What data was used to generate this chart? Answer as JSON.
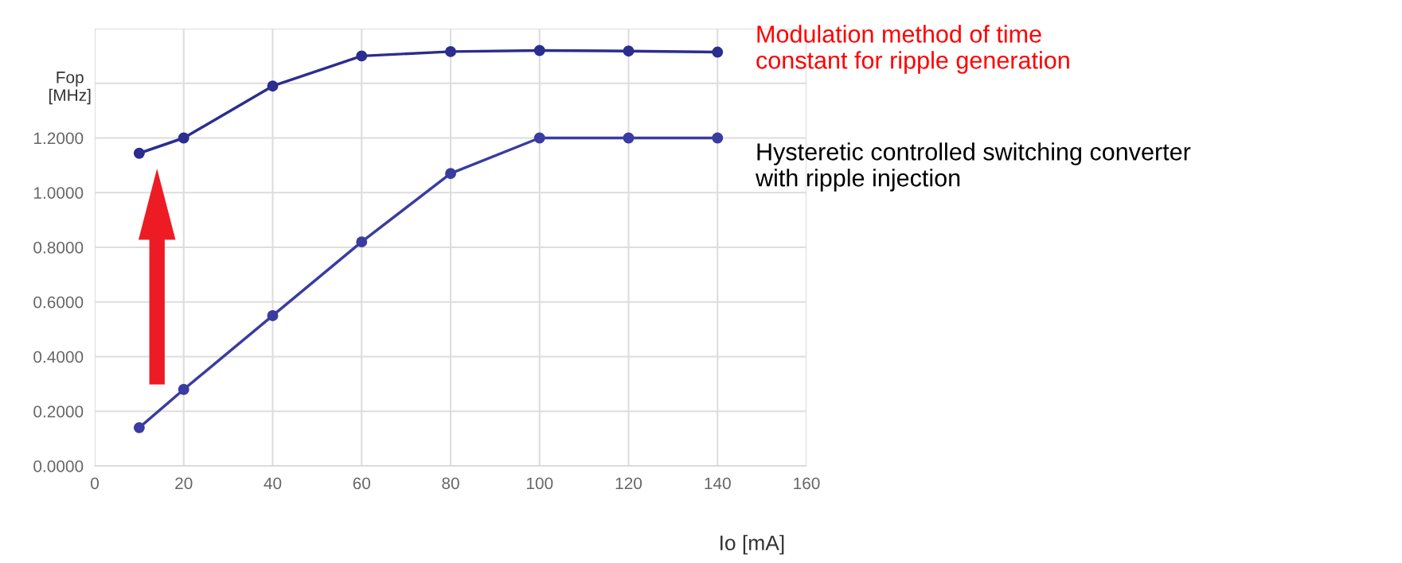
{
  "chart_data": {
    "type": "line",
    "xlabel": "Io [mA]",
    "ylabel": "Fop\n[MHz]",
    "x": [
      10,
      20,
      40,
      60,
      80,
      100,
      120,
      140
    ],
    "series": [
      {
        "color": "#2b2d8f",
        "values": [
          1.144,
          1.2,
          1.39,
          1.5,
          1.516,
          1.52,
          1.518,
          1.514
        ]
      },
      {
        "color": "#3b3ca0",
        "values": [
          0.14,
          0.28,
          0.55,
          0.82,
          1.07,
          1.2,
          1.2,
          1.2
        ]
      }
    ],
    "xlim": [
      0,
      160
    ],
    "xticks": [
      0,
      20,
      40,
      60,
      80,
      100,
      120,
      140,
      160
    ],
    "ylim": [
      0,
      1.6
    ],
    "yticks": [
      {
        "value": 0,
        "label": "0.0000"
      },
      {
        "value": 0.2,
        "label": "0.2000"
      },
      {
        "value": 0.4,
        "label": "0.4000"
      },
      {
        "value": 0.6,
        "label": "0.6000"
      },
      {
        "value": 0.8,
        "label": "0.8000"
      },
      {
        "value": 1.0,
        "label": "1.0000"
      },
      {
        "value": 1.2,
        "label": "1.2000"
      },
      {
        "value": 1.4,
        "label": null
      },
      {
        "value": 1.6,
        "label": null
      }
    ],
    "grid": true,
    "marker": "circle",
    "line_style": "solid",
    "annotations": [
      "Modulation method of time\nconstant for ripple generation",
      "Hysteretic controlled switching converter\nwith ripple injection"
    ]
  }
}
